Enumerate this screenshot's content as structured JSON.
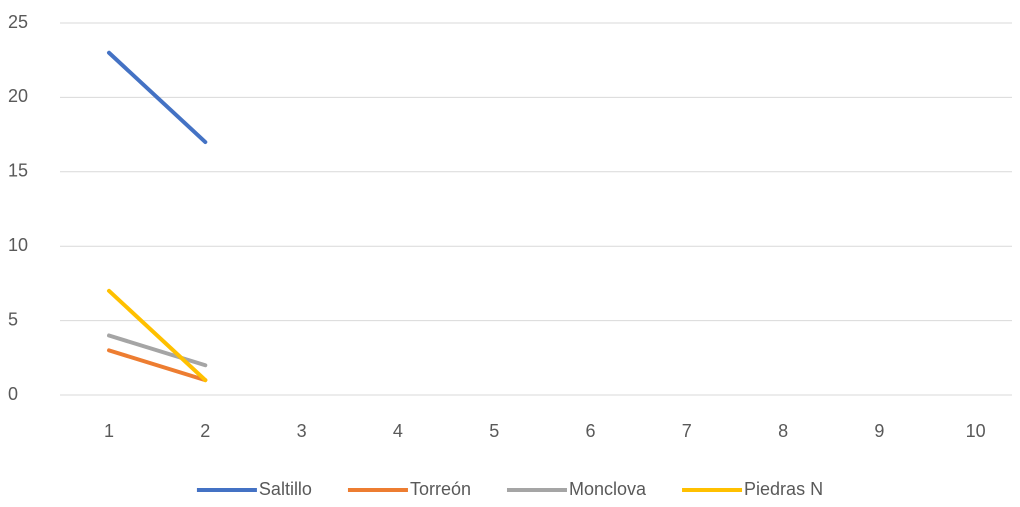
{
  "chart_data": {
    "type": "line",
    "categories": [
      "1",
      "2",
      "3",
      "4",
      "5",
      "6",
      "7",
      "8",
      "9",
      "10"
    ],
    "series": [
      {
        "name": "Saltillo",
        "color": "#4472c4",
        "values": [
          23,
          17,
          null,
          null,
          null,
          null,
          null,
          null,
          null,
          null
        ]
      },
      {
        "name": "Torreón",
        "color": "#ed7d31",
        "values": [
          3,
          1,
          null,
          null,
          null,
          null,
          null,
          null,
          null,
          null
        ]
      },
      {
        "name": "Monclova",
        "color": "#a5a5a5",
        "values": [
          4,
          2,
          null,
          null,
          null,
          null,
          null,
          null,
          null,
          null
        ]
      },
      {
        "name": "Piedras N",
        "color": "#ffc000",
        "values": [
          7,
          1,
          null,
          null,
          null,
          null,
          null,
          null,
          null,
          null
        ]
      }
    ],
    "ylim": [
      0,
      25
    ],
    "yticks": [
      0,
      5,
      10,
      15,
      20,
      25
    ],
    "grid": true,
    "legend": "bottom"
  }
}
